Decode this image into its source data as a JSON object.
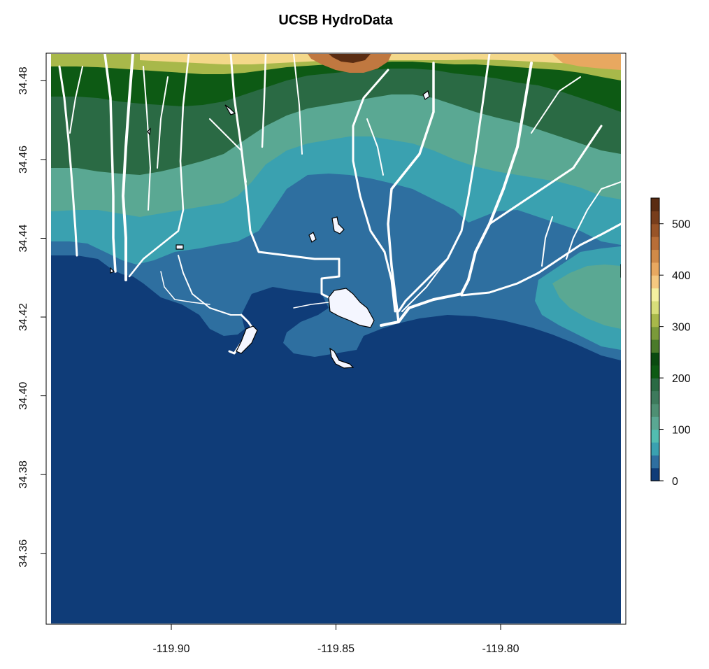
{
  "title": "UCSB HydroData",
  "x_axis": {
    "ticks": [
      {
        "value": -119.9,
        "label": "-119.90"
      },
      {
        "value": -119.85,
        "label": "-119.85"
      },
      {
        "value": -119.8,
        "label": "-119.80"
      }
    ],
    "range": [
      -119.938,
      -119.762
    ]
  },
  "y_axis": {
    "ticks": [
      {
        "value": 34.36,
        "label": "34.36"
      },
      {
        "value": 34.38,
        "label": "34.38"
      },
      {
        "value": 34.4,
        "label": "34.40"
      },
      {
        "value": 34.42,
        "label": "34.42"
      },
      {
        "value": 34.44,
        "label": "34.44"
      },
      {
        "value": 34.46,
        "label": "34.46"
      },
      {
        "value": 34.48,
        "label": "34.48"
      }
    ],
    "range": [
      34.342,
      34.487
    ]
  },
  "legend": {
    "placement": "right",
    "range": [
      0,
      550
    ],
    "ticks": [
      {
        "value": 0,
        "label": "0"
      },
      {
        "value": 100,
        "label": "100"
      },
      {
        "value": 200,
        "label": "200"
      },
      {
        "value": 300,
        "label": "300"
      },
      {
        "value": 400,
        "label": "400"
      },
      {
        "value": 500,
        "label": "500"
      }
    ],
    "colors": [
      "#0f3c78",
      "#2e6fa0",
      "#3aa1b0",
      "#52bdb0",
      "#5aa893",
      "#4e8f73",
      "#3d7a5c",
      "#2a6a44",
      "#0d5a14",
      "#0a4a10",
      "#4a7a2a",
      "#7a9a3a",
      "#a8b84a",
      "#d8de7a",
      "#f4f0a0",
      "#f5c880",
      "#e8a860",
      "#d08a48",
      "#b86e38",
      "#985428",
      "#783e1c",
      "#5a2c12"
    ]
  },
  "colors": {
    "ocean": "#0f3c78",
    "coastal_flat": "#2e6fa0",
    "low_hills": "#3aa1b0",
    "mid_hills": "#5aa893",
    "forest": "#2a6a44",
    "dark_forest": "#0d5a14",
    "foothill": "#a8b84a",
    "ridge": "#f4d88a",
    "peak": "#c07840",
    "streams": "#ffffff",
    "lakes": "#f4f6ff"
  }
}
